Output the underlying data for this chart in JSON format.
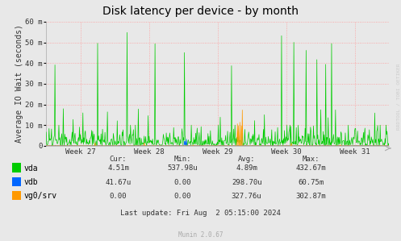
{
  "title": "Disk latency per device - by month",
  "ylabel": "Average IO Wait (seconds)",
  "background_color": "#e8e8e8",
  "grid_color": "#ff9999",
  "ylim": [
    0,
    60
  ],
  "yticks": [
    0,
    10,
    20,
    30,
    40,
    50,
    60
  ],
  "ytick_labels": [
    "0",
    "10 m",
    "20 m",
    "30 m",
    "40 m",
    "50 m",
    "60 m"
  ],
  "week_labels": [
    "Week 27",
    "Week 28",
    "Week 29",
    "Week 30",
    "Week 31"
  ],
  "colors": {
    "vda": "#00cc00",
    "vdb": "#0066ff",
    "vg0_srv": "#ff9900"
  },
  "legend": [
    {
      "label": "vda",
      "color": "#00cc00"
    },
    {
      "label": "vdb",
      "color": "#0066ff"
    },
    {
      "label": "vg0/srv",
      "color": "#ff9900"
    }
  ],
  "stats_header": [
    "Cur:",
    "Min:",
    "Avg:",
    "Max:"
  ],
  "stats": [
    {
      "name": "vda",
      "cur": "4.51m",
      "min": "537.98u",
      "avg": "4.89m",
      "max": "432.67m"
    },
    {
      "name": "vdb",
      "cur": "41.67u",
      "min": "0.00",
      "avg": "298.70u",
      "max": "60.75m"
    },
    {
      "name": "vg0/srv",
      "cur": "0.00",
      "min": "0.00",
      "avg": "327.76u",
      "max": "302.87m"
    }
  ],
  "last_update": "Last update: Fri Aug  2 05:15:00 2024",
  "munin_version": "Munin 2.0.67",
  "rrdtool_label": "RRDTOOL / TOBI OETIKER",
  "title_fontsize": 10,
  "ylabel_fontsize": 7,
  "tick_fontsize": 6.5,
  "legend_fontsize": 7,
  "stats_fontsize": 6.5
}
